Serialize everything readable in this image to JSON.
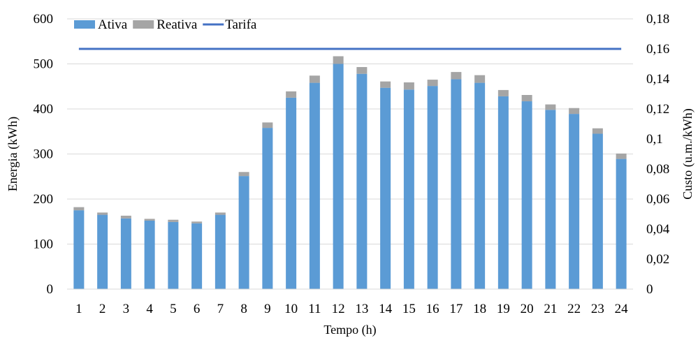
{
  "chart_data": {
    "type": "bar",
    "stacked": true,
    "x": [
      1,
      2,
      3,
      4,
      5,
      6,
      7,
      8,
      9,
      10,
      11,
      12,
      13,
      14,
      15,
      16,
      17,
      18,
      19,
      20,
      21,
      22,
      23,
      24
    ],
    "xlabel": "Tempo (h)",
    "ylabel": "Energia (kWh)",
    "y2label": "Custo (u.m./kWh)",
    "ylim": [
      0,
      600
    ],
    "y2lim": [
      0,
      0.18
    ],
    "yticks": [
      0,
      100,
      200,
      300,
      400,
      500,
      600
    ],
    "y2ticks": [
      "0",
      "0,02",
      "0,04",
      "0,06",
      "0,08",
      "0,1",
      "0,12",
      "0,14",
      "0,16",
      "0,18"
    ],
    "grid": true,
    "legend_position": "top-left",
    "series": [
      {
        "name": "Ativa",
        "kind": "bar",
        "color": "#5b9bd5",
        "values": [
          175,
          165,
          157,
          152,
          149,
          146,
          165,
          251,
          358,
          425,
          458,
          500,
          478,
          447,
          443,
          451,
          466,
          458,
          428,
          417,
          398,
          389,
          345,
          289
        ]
      },
      {
        "name": "Reativa",
        "kind": "bar",
        "color": "#a5a5a5",
        "values": [
          7,
          5,
          6,
          4,
          5,
          4,
          5,
          9,
          12,
          14,
          16,
          17,
          15,
          14,
          16,
          14,
          16,
          17,
          14,
          14,
          12,
          13,
          12,
          12
        ]
      },
      {
        "name": "Tarifa",
        "kind": "line",
        "axis": "right",
        "color": "#4472c4",
        "values": [
          0.16,
          0.16,
          0.16,
          0.16,
          0.16,
          0.16,
          0.16,
          0.16,
          0.16,
          0.16,
          0.16,
          0.16,
          0.16,
          0.16,
          0.16,
          0.16,
          0.16,
          0.16,
          0.16,
          0.16,
          0.16,
          0.16,
          0.16,
          0.16
        ]
      }
    ]
  }
}
